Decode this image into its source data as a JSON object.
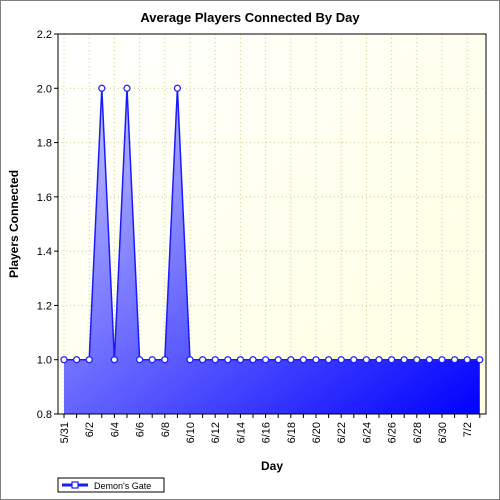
{
  "chart_data": {
    "type": "area",
    "title": "Average Players Connected By Day",
    "xlabel": "Day",
    "ylabel": "Players Connected",
    "ylim": [
      0.8,
      2.2
    ],
    "yticks": [
      0.8,
      1.0,
      1.2,
      1.4,
      1.6,
      1.8,
      2.0,
      2.2
    ],
    "grid": true,
    "legend_position": "bottom-left",
    "colors": {
      "series": "#1a1aff",
      "plot_top": "#ffffe0",
      "plot_bottom": "#ffffff"
    },
    "x": [
      "5/31",
      "6/1",
      "6/2",
      "6/3",
      "6/4",
      "6/5",
      "6/6",
      "6/7",
      "6/8",
      "6/9",
      "6/10",
      "6/11",
      "6/12",
      "6/13",
      "6/14",
      "6/15",
      "6/16",
      "6/17",
      "6/18",
      "6/19",
      "6/20",
      "6/21",
      "6/22",
      "6/23",
      "6/24",
      "6/25",
      "6/26",
      "6/27",
      "6/28",
      "6/29",
      "6/30",
      "7/1",
      "7/2",
      "7/3"
    ],
    "x_tick_labels": [
      "5/31",
      "6/2",
      "6/4",
      "6/6",
      "6/8",
      "6/10",
      "6/12",
      "6/14",
      "6/16",
      "6/18",
      "6/20",
      "6/22",
      "6/24",
      "6/26",
      "6/28",
      "6/30",
      "7/2"
    ],
    "series": [
      {
        "name": "Demon's Gate",
        "values": [
          1.0,
          1.0,
          1.0,
          2.0,
          1.0,
          2.0,
          1.0,
          1.0,
          1.0,
          2.0,
          1.0,
          1.0,
          1.0,
          1.0,
          1.0,
          1.0,
          1.0,
          1.0,
          1.0,
          1.0,
          1.0,
          1.0,
          1.0,
          1.0,
          1.0,
          1.0,
          1.0,
          1.0,
          1.0,
          1.0,
          1.0,
          1.0,
          1.0,
          1.0
        ]
      }
    ]
  }
}
